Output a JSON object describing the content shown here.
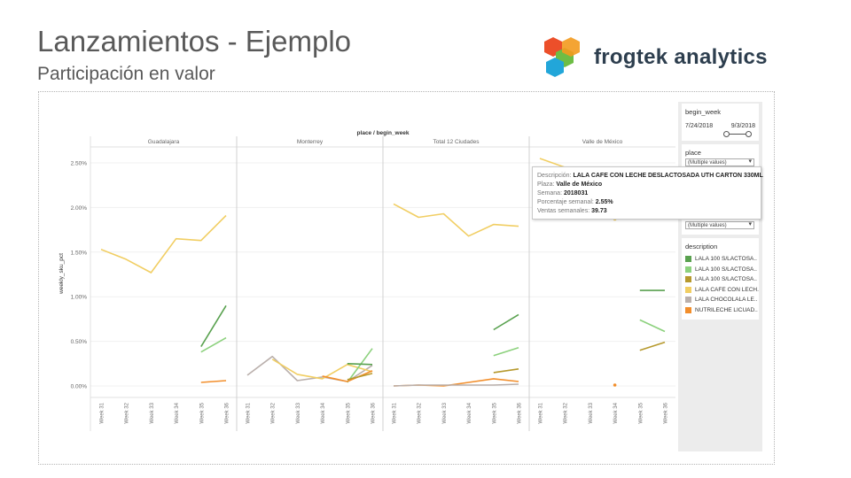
{
  "slide": {
    "title": "Lanzamientos - Ejemplo",
    "subtitle": "Participación en valor",
    "brand": "frogtek analytics"
  },
  "colors": {
    "dark_green": "#59a14f",
    "light_green": "#8cd17d",
    "olive": "#b6992d",
    "yellow": "#f1ce63",
    "grey": "#bab0ac",
    "orange": "#f28e2b"
  },
  "chart_data": {
    "type": "line",
    "title": "place / begin_week",
    "ylabel": "weekly_sku_pct",
    "ylim": [
      0,
      2.5
    ],
    "yticks": [
      "0.00%",
      "0.50%",
      "1.00%",
      "1.50%",
      "2.00%",
      "2.50%"
    ],
    "categories": [
      "Week 31",
      "Week 32",
      "Week 33",
      "Week 34",
      "Week 35",
      "Week 36"
    ],
    "panels": [
      {
        "name": "Guadalajara",
        "series": [
          {
            "color": "#f1ce63",
            "values": [
              1.53,
              1.42,
              1.27,
              1.65,
              1.63,
              1.91
            ]
          },
          {
            "color": "#59a14f",
            "values": [
              null,
              null,
              null,
              null,
              0.44,
              0.9
            ]
          },
          {
            "color": "#8cd17d",
            "values": [
              null,
              null,
              null,
              null,
              0.38,
              0.54
            ]
          },
          {
            "color": "#f28e2b",
            "values": [
              null,
              null,
              null,
              null,
              0.04,
              0.06
            ]
          }
        ]
      },
      {
        "name": "Monterrey",
        "series": [
          {
            "color": "#bab0ac",
            "values": [
              0.12,
              0.33,
              0.06,
              0.1,
              0.05,
              0.23
            ]
          },
          {
            "color": "#f1ce63",
            "values": [
              null,
              0.3,
              0.13,
              0.08,
              0.24,
              0.16
            ]
          },
          {
            "color": "#8cd17d",
            "values": [
              null,
              null,
              null,
              null,
              0.04,
              0.42
            ]
          },
          {
            "color": "#59a14f",
            "values": [
              null,
              null,
              null,
              null,
              0.25,
              0.24
            ]
          },
          {
            "color": "#f28e2b",
            "values": [
              null,
              null,
              null,
              0.11,
              0.05,
              0.17
            ]
          },
          {
            "color": "#b6992d",
            "values": [
              null,
              null,
              null,
              null,
              0.07,
              0.14
            ]
          }
        ]
      },
      {
        "name": "Total 12 Ciudades",
        "series": [
          {
            "color": "#f1ce63",
            "values": [
              2.04,
              1.89,
              1.93,
              1.68,
              1.81,
              1.79
            ]
          },
          {
            "color": "#59a14f",
            "values": [
              null,
              null,
              null,
              null,
              0.63,
              0.8
            ]
          },
          {
            "color": "#8cd17d",
            "values": [
              null,
              null,
              null,
              null,
              0.34,
              0.43
            ]
          },
          {
            "color": "#b6992d",
            "values": [
              null,
              null,
              null,
              null,
              0.15,
              0.19
            ]
          },
          {
            "color": "#f28e2b",
            "values": [
              0.0,
              0.01,
              0.0,
              0.04,
              0.08,
              0.05
            ]
          },
          {
            "color": "#bab0ac",
            "values": [
              0.0,
              0.01,
              0.01,
              0.01,
              0.01,
              0.02
            ]
          }
        ]
      },
      {
        "name": "Valle de México",
        "series": [
          {
            "color": "#f1ce63",
            "values": [
              2.55,
              2.45,
              null,
              1.87,
              null,
              null
            ]
          },
          {
            "color": "#59a14f",
            "values": [
              null,
              null,
              null,
              null,
              1.07,
              1.07
            ]
          },
          {
            "color": "#8cd17d",
            "values": [
              null,
              null,
              null,
              null,
              0.74,
              0.61
            ]
          },
          {
            "color": "#b6992d",
            "values": [
              null,
              null,
              null,
              null,
              0.4,
              0.49
            ]
          },
          {
            "color": "#f28e2b",
            "values": [
              null,
              null,
              null,
              0.01,
              null,
              null
            ]
          }
        ]
      }
    ]
  },
  "filters": {
    "begin_week": {
      "label": "begin_week",
      "start": "7/24/2018",
      "end": "9/3/2018"
    },
    "place": {
      "label": "place",
      "value": "(Multiple values)"
    },
    "third": {
      "value": "(Multiple values)"
    },
    "description": {
      "label": "description",
      "items": [
        {
          "label": "LALA 100 S/LACTOSA..",
          "color": "#59a14f"
        },
        {
          "label": "LALA 100 S/LACTOSA..",
          "color": "#8cd17d"
        },
        {
          "label": "LALA 100 S/LACTOSA..",
          "color": "#b6992d"
        },
        {
          "label": "LALA CAFE CON LECH..",
          "color": "#f1ce63"
        },
        {
          "label": "LALA CHOCOLALA LE..",
          "color": "#bab0ac"
        },
        {
          "label": "NUTRILECHE LICUAD..",
          "color": "#f28e2b"
        }
      ]
    }
  },
  "tooltip": {
    "desc_label": "Descripción:",
    "desc_value": "LALA CAFE CON LECHE DESLACTOSADA UTH CARTON 330ML",
    "plaza_label": "Plaza:",
    "plaza_value": "Valle de México",
    "semana_label": "Semana:",
    "semana_value": "2018031",
    "pct_label": "Porcentaje semanal:",
    "pct_value": "2.55%",
    "ventas_label": "Ventas semanales:",
    "ventas_value": "39.73"
  }
}
